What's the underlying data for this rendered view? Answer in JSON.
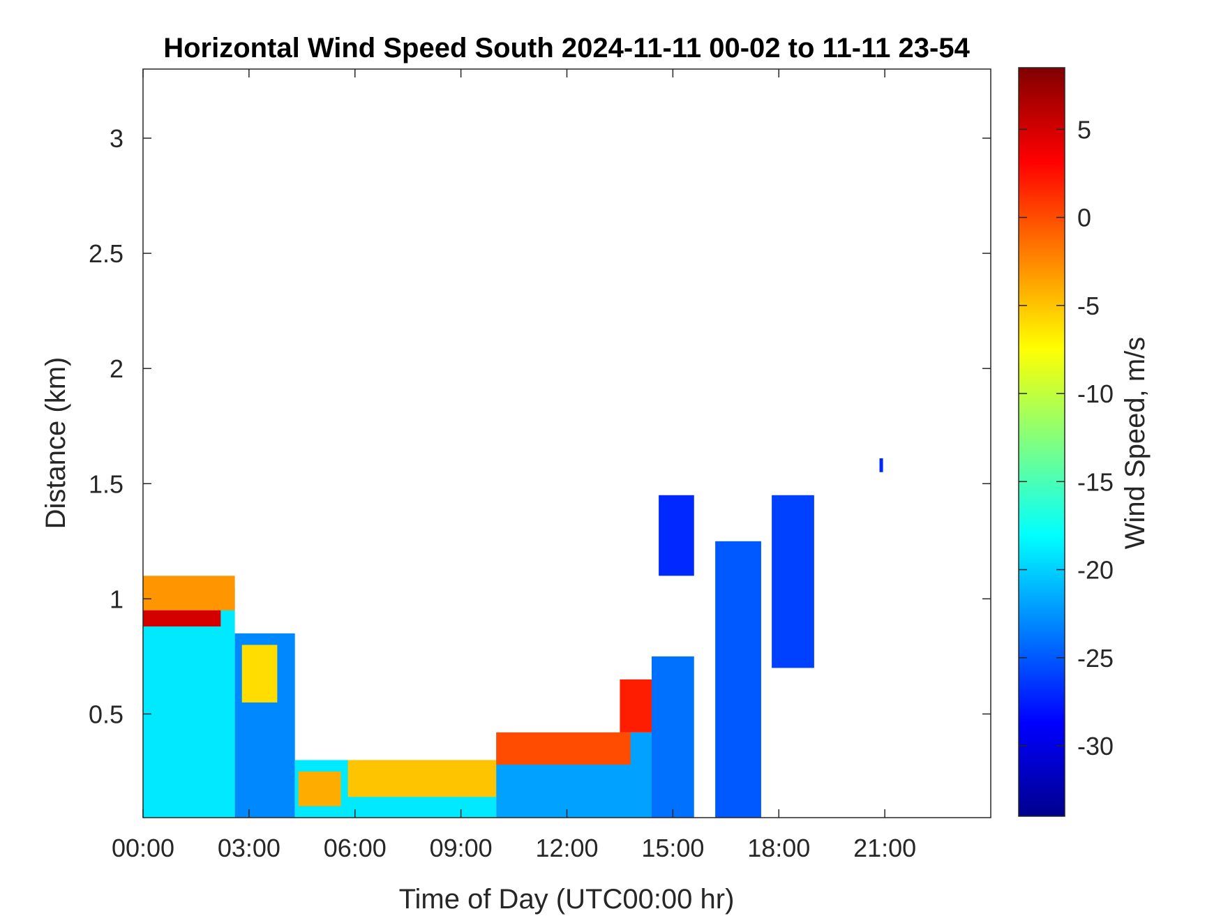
{
  "chart_data": {
    "type": "heatmap",
    "title": "Horizontal Wind Speed South 2024-11-11 00-02 to 11-11 23-54",
    "xlabel": "Time of Day (UTC00:00 hr)",
    "ylabel": "Distance (km)",
    "colorbar_label": "Wind Speed, m/s",
    "colormap": "jet",
    "x_unit": "hour",
    "xlim": [
      0,
      24
    ],
    "ylim": [
      0.05,
      3.3
    ],
    "clim": [
      -34,
      8.5
    ],
    "x_ticks": [
      {
        "value": 0,
        "label": "00:00"
      },
      {
        "value": 3,
        "label": "03:00"
      },
      {
        "value": 6,
        "label": "06:00"
      },
      {
        "value": 9,
        "label": "09:00"
      },
      {
        "value": 12,
        "label": "12:00"
      },
      {
        "value": 15,
        "label": "15:00"
      },
      {
        "value": 18,
        "label": "18:00"
      },
      {
        "value": 21,
        "label": "21:00"
      }
    ],
    "y_ticks": [
      {
        "value": 0.5,
        "label": "0.5"
      },
      {
        "value": 1,
        "label": "1"
      },
      {
        "value": 1.5,
        "label": "1.5"
      },
      {
        "value": 2,
        "label": "2"
      },
      {
        "value": 2.5,
        "label": "2.5"
      },
      {
        "value": 3,
        "label": "3"
      }
    ],
    "colorbar_ticks": [
      {
        "value": 5,
        "label": "5"
      },
      {
        "value": 0,
        "label": "0"
      },
      {
        "value": -5,
        "label": "-5"
      },
      {
        "value": -10,
        "label": "-10"
      },
      {
        "value": -15,
        "label": "-15"
      },
      {
        "value": -20,
        "label": "-20"
      },
      {
        "value": -25,
        "label": "-25"
      },
      {
        "value": -30,
        "label": "-30"
      }
    ],
    "grid": false,
    "regions": [
      {
        "t0": 0.0,
        "t1": 2.6,
        "h0": 0.05,
        "h1": 1.05,
        "v": -19
      },
      {
        "t0": 0.0,
        "t1": 2.2,
        "h0": 0.88,
        "h1": 1.05,
        "v": 5
      },
      {
        "t0": 0.0,
        "t1": 2.6,
        "h0": 0.95,
        "h1": 1.1,
        "v": -3
      },
      {
        "t0": 2.6,
        "t1": 4.3,
        "h0": 0.05,
        "h1": 0.85,
        "v": -23
      },
      {
        "t0": 2.8,
        "t1": 3.8,
        "h0": 0.55,
        "h1": 0.8,
        "v": -6
      },
      {
        "t0": 4.3,
        "t1": 10.0,
        "h0": 0.05,
        "h1": 0.3,
        "v": -19
      },
      {
        "t0": 4.4,
        "t1": 5.6,
        "h0": 0.1,
        "h1": 0.25,
        "v": -4
      },
      {
        "t0": 5.8,
        "t1": 10.0,
        "h0": 0.14,
        "h1": 0.3,
        "v": -5
      },
      {
        "t0": 10.0,
        "t1": 14.6,
        "h0": 0.05,
        "h1": 0.42,
        "v": -22
      },
      {
        "t0": 10.0,
        "t1": 13.8,
        "h0": 0.28,
        "h1": 0.42,
        "v": 0
      },
      {
        "t0": 13.5,
        "t1": 14.4,
        "h0": 0.42,
        "h1": 0.65,
        "v": 2
      },
      {
        "t0": 14.4,
        "t1": 15.6,
        "h0": 0.05,
        "h1": 0.75,
        "v": -24
      },
      {
        "t0": 16.2,
        "t1": 17.5,
        "h0": 0.05,
        "h1": 1.25,
        "v": -25
      },
      {
        "t0": 17.8,
        "t1": 19.0,
        "h0": 0.7,
        "h1": 1.45,
        "v": -26
      },
      {
        "t0": 14.6,
        "t1": 15.6,
        "h0": 1.1,
        "h1": 1.45,
        "v": -27
      },
      {
        "t0": 20.85,
        "t1": 20.95,
        "h0": 1.55,
        "h1": 1.61,
        "v": -27
      }
    ]
  }
}
